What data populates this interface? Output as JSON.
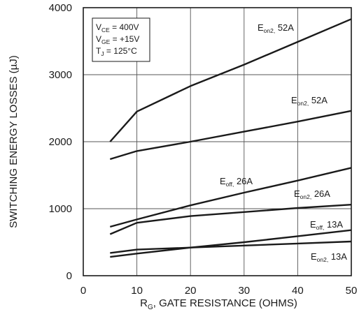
{
  "chart_data": {
    "type": "line",
    "xlabel": {
      "main": "R",
      "sub": "G",
      "rest": ", GATE RESISTANCE (OHMS)"
    },
    "ylabel": "SWITCHING ENERGY LOSSES (µJ)",
    "xlim": [
      0,
      50
    ],
    "ylim": [
      0,
      4000
    ],
    "xticks": [
      0,
      10,
      20,
      30,
      40,
      50
    ],
    "yticks": [
      0,
      1000,
      2000,
      3000,
      4000
    ],
    "grid": true,
    "conditions": [
      {
        "main": "V",
        "sub": "CE",
        "rest": " = 400V"
      },
      {
        "main": "V",
        "sub": "GE",
        "rest": " = +15V"
      },
      {
        "main": "T",
        "sub": "J",
        "rest": " = 125°C"
      }
    ],
    "series": [
      {
        "label": {
          "main": "E",
          "sub": "on2,",
          "rest": " 52A"
        },
        "x": [
          5,
          10,
          20,
          30,
          40,
          50
        ],
        "y": [
          2000,
          2450,
          2830,
          3150,
          3490,
          3830
        ]
      },
      {
        "label": {
          "main": "E",
          "sub": "on2,",
          "rest": " 52A"
        },
        "x": [
          5,
          10,
          20,
          30,
          40,
          50
        ],
        "y": [
          1740,
          1860,
          2000,
          2150,
          2300,
          2460
        ]
      },
      {
        "label": {
          "main": "E",
          "sub": "off,",
          "rest": " 26A"
        },
        "x": [
          5,
          10,
          20,
          30,
          40,
          50
        ],
        "y": [
          730,
          840,
          1050,
          1240,
          1420,
          1610
        ]
      },
      {
        "label": {
          "main": "E",
          "sub": "on2,",
          "rest": " 26A"
        },
        "x": [
          5,
          10,
          20,
          30,
          40,
          50
        ],
        "y": [
          620,
          790,
          890,
          950,
          1010,
          1060
        ]
      },
      {
        "label": {
          "main": "E",
          "sub": "off,",
          "rest": " 13A"
        },
        "x": [
          5,
          10,
          20,
          30,
          40,
          50
        ],
        "y": [
          280,
          330,
          420,
          500,
          590,
          680
        ]
      },
      {
        "label": {
          "main": "E",
          "sub": "on2,",
          "rest": " 13A"
        },
        "x": [
          5,
          10,
          20,
          30,
          40,
          50
        ],
        "y": [
          340,
          390,
          420,
          450,
          480,
          510
        ]
      }
    ]
  }
}
